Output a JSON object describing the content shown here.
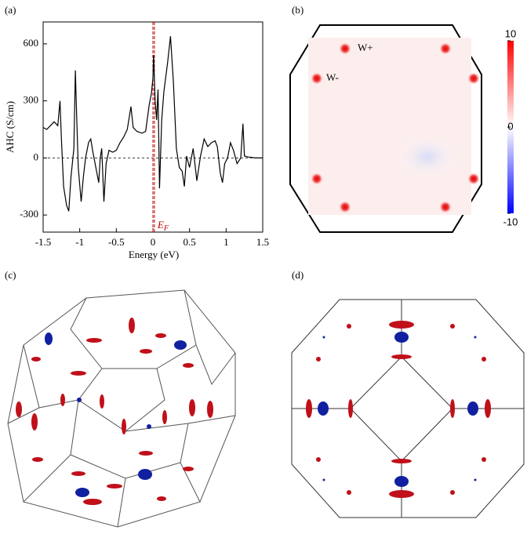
{
  "chart_data": {
    "type": "line",
    "ylabel": "AHC (S/cm)",
    "xlabel": "Energy (eV)",
    "annotation": {
      "main": "E",
      "sub": "F"
    },
    "x": [
      -1.5,
      -1.45,
      -1.4,
      -1.35,
      -1.3,
      -1.27,
      -1.25,
      -1.22,
      -1.18,
      -1.15,
      -1.12,
      -1.08,
      -1.06,
      -1.04,
      -1.02,
      -0.98,
      -0.95,
      -0.92,
      -0.88,
      -0.85,
      -0.82,
      -0.78,
      -0.74,
      -0.72,
      -0.7,
      -0.67,
      -0.64,
      -0.6,
      -0.55,
      -0.5,
      -0.45,
      -0.4,
      -0.35,
      -0.3,
      -0.27,
      -0.22,
      -0.15,
      -0.1,
      -0.05,
      -0.02,
      0,
      0.01,
      0.03,
      0.05,
      0.07,
      0.09,
      0.12,
      0.15,
      0.2,
      0.24,
      0.28,
      0.32,
      0.36,
      0.4,
      0.43,
      0.46,
      0.5,
      0.55,
      0.6,
      0.65,
      0.7,
      0.75,
      0.8,
      0.85,
      0.88,
      0.92,
      0.95,
      0.98,
      1.02,
      1.06,
      1.1,
      1.15,
      1.2,
      1.23,
      1.25,
      1.3,
      1.4,
      1.5
    ],
    "series": [
      {
        "color": "#000000",
        "values": [
          160,
          150,
          170,
          190,
          170,
          300,
          100,
          -150,
          -250,
          -280,
          -100,
          50,
          460,
          200,
          -50,
          -230,
          -100,
          0,
          80,
          100,
          30,
          -50,
          -130,
          0,
          50,
          -230,
          -30,
          40,
          30,
          40,
          80,
          110,
          150,
          270,
          160,
          140,
          130,
          140,
          280,
          340,
          420,
          540,
          300,
          200,
          360,
          -160,
          200,
          350,
          500,
          640,
          400,
          50,
          -50,
          -70,
          -150,
          10,
          -50,
          50,
          -120,
          10,
          100,
          60,
          80,
          90,
          60,
          -80,
          -130,
          -30,
          0,
          80,
          40,
          -30,
          0,
          180,
          10,
          5,
          0,
          0
        ]
      }
    ],
    "fermi_lines": [
      0,
      0.02
    ],
    "fermi_color": "#c00000",
    "xlim": [
      -1.5,
      1.5
    ],
    "ylim": [
      -390,
      715
    ],
    "xticks": [
      -1.5,
      -1,
      -0.5,
      0,
      0.5,
      1,
      1.5
    ],
    "yticks": [
      -300,
      0,
      300,
      600
    ]
  },
  "panel_labels": [
    "(a)",
    "(b)",
    "(c)",
    "(d)"
  ],
  "panel_b": {
    "labels": [
      "W+",
      "W-"
    ],
    "colorbar": {
      "lim": [
        -10,
        10
      ],
      "ticks": [
        10,
        0,
        -10
      ]
    }
  }
}
